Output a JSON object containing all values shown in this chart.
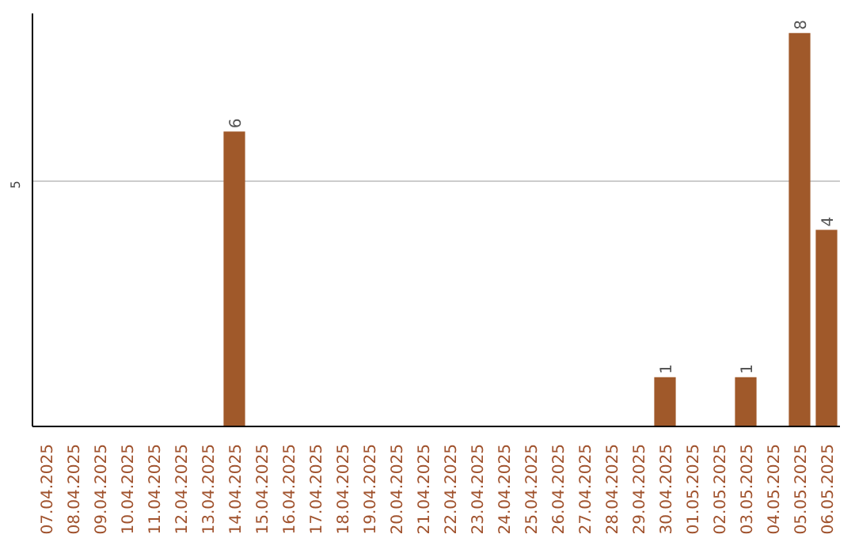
{
  "chart_data": {
    "type": "bar",
    "categories": [
      "07.04.2025",
      "08.04.2025",
      "09.04.2025",
      "10.04.2025",
      "11.04.2025",
      "12.04.2025",
      "13.04.2025",
      "14.04.2025",
      "15.04.2025",
      "16.04.2025",
      "17.04.2025",
      "18.04.2025",
      "19.04.2025",
      "20.04.2025",
      "21.04.2025",
      "22.04.2025",
      "23.04.2025",
      "24.04.2025",
      "25.04.2025",
      "26.04.2025",
      "27.04.2025",
      "28.04.2025",
      "29.04.2025",
      "30.04.2025",
      "01.05.2025",
      "02.05.2025",
      "03.05.2025",
      "04.05.2025",
      "05.05.2025",
      "06.05.2025"
    ],
    "values": [
      0,
      0,
      0,
      0,
      0,
      0,
      0,
      6,
      0,
      0,
      0,
      0,
      0,
      0,
      0,
      0,
      0,
      0,
      0,
      0,
      0,
      0,
      0,
      1,
      0,
      0,
      1,
      0,
      8,
      4
    ],
    "value_labels": [
      null,
      null,
      null,
      null,
      null,
      null,
      null,
      "6",
      null,
      null,
      null,
      null,
      null,
      null,
      null,
      null,
      null,
      null,
      null,
      null,
      null,
      null,
      null,
      "1",
      null,
      null,
      "1",
      null,
      "8",
      "4"
    ],
    "color": "#a0592a",
    "ylim": [
      0,
      8.4
    ],
    "yticks": [
      5
    ],
    "grid": "y"
  }
}
